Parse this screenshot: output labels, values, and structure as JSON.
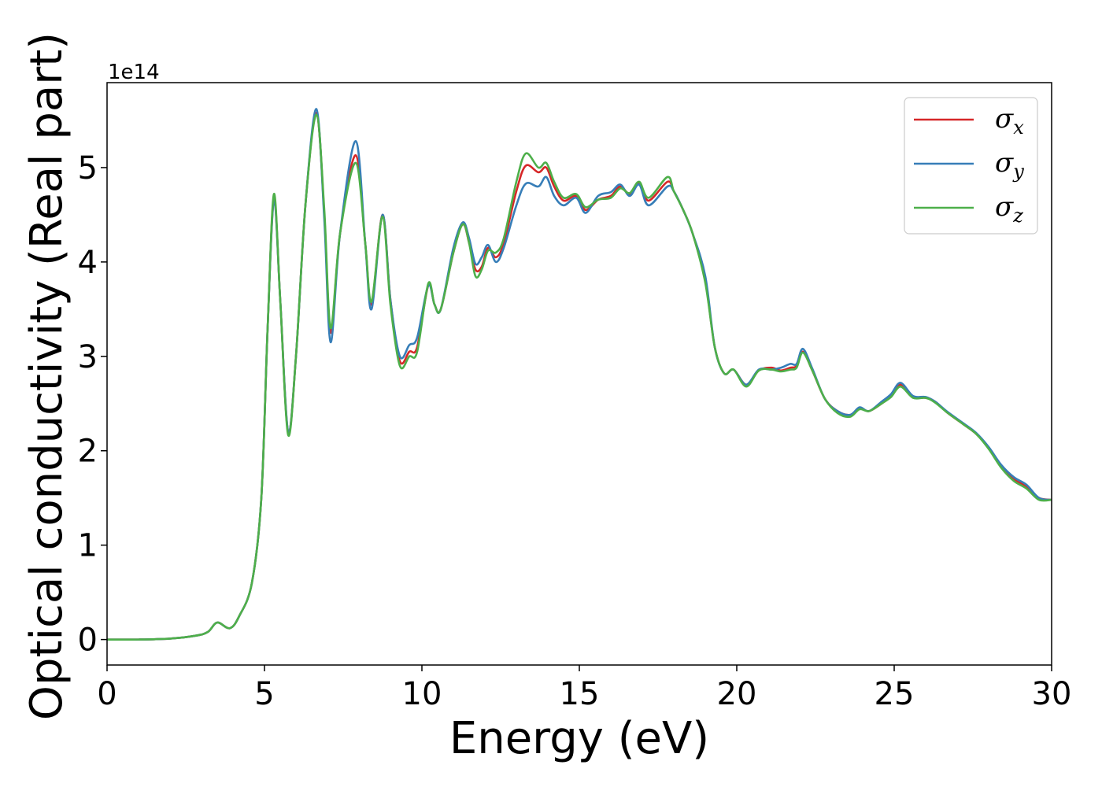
{
  "chart_data": {
    "type": "line",
    "xlabel": "Energy (eV)",
    "ylabel": "Optical conductivity (Real part)",
    "y_offset_label": "1e14",
    "xlim": [
      0,
      30
    ],
    "ylim": [
      -0.27,
      5.9
    ],
    "x_ticks": [
      0,
      5,
      10,
      15,
      20,
      25,
      30
    ],
    "y_ticks": [
      0,
      1,
      2,
      3,
      4,
      5
    ],
    "grid": false,
    "legend_position": "top-right",
    "series": [
      {
        "name": "σx",
        "symbol": "σ",
        "subscript": "x",
        "color": "#d62728",
        "points": [
          [
            0,
            0
          ],
          [
            1,
            0
          ],
          [
            2,
            0.01
          ],
          [
            2.8,
            0.04
          ],
          [
            3.2,
            0.08
          ],
          [
            3.5,
            0.18
          ],
          [
            3.9,
            0.12
          ],
          [
            4.2,
            0.25
          ],
          [
            4.6,
            0.6
          ],
          [
            4.9,
            1.5
          ],
          [
            5.1,
            3.3
          ],
          [
            5.3,
            4.68
          ],
          [
            5.5,
            3.6
          ],
          [
            5.75,
            2.2
          ],
          [
            6.0,
            3.0
          ],
          [
            6.3,
            4.6
          ],
          [
            6.65,
            5.58
          ],
          [
            6.9,
            4.5
          ],
          [
            7.1,
            3.25
          ],
          [
            7.4,
            4.3
          ],
          [
            7.9,
            5.13
          ],
          [
            8.2,
            4.2
          ],
          [
            8.4,
            3.55
          ],
          [
            8.75,
            4.5
          ],
          [
            9.0,
            3.6
          ],
          [
            9.3,
            2.95
          ],
          [
            9.6,
            3.05
          ],
          [
            9.85,
            3.1
          ],
          [
            10.2,
            3.75
          ],
          [
            10.4,
            3.55
          ],
          [
            10.6,
            3.5
          ],
          [
            11.0,
            4.1
          ],
          [
            11.3,
            4.4
          ],
          [
            11.5,
            4.2
          ],
          [
            11.7,
            3.92
          ],
          [
            11.9,
            3.95
          ],
          [
            12.1,
            4.15
          ],
          [
            12.35,
            4.05
          ],
          [
            12.6,
            4.2
          ],
          [
            13.0,
            4.75
          ],
          [
            13.3,
            5.02
          ],
          [
            13.7,
            4.95
          ],
          [
            13.95,
            5.0
          ],
          [
            14.2,
            4.8
          ],
          [
            14.5,
            4.65
          ],
          [
            14.9,
            4.7
          ],
          [
            15.2,
            4.55
          ],
          [
            15.6,
            4.66
          ],
          [
            16.0,
            4.7
          ],
          [
            16.3,
            4.8
          ],
          [
            16.6,
            4.72
          ],
          [
            16.9,
            4.83
          ],
          [
            17.2,
            4.65
          ],
          [
            17.8,
            4.85
          ],
          [
            18.0,
            4.75
          ],
          [
            18.3,
            4.55
          ],
          [
            18.6,
            4.3
          ],
          [
            19.0,
            3.8
          ],
          [
            19.3,
            3.1
          ],
          [
            19.6,
            2.82
          ],
          [
            19.9,
            2.86
          ],
          [
            20.3,
            2.7
          ],
          [
            20.7,
            2.85
          ],
          [
            21.1,
            2.88
          ],
          [
            21.4,
            2.85
          ],
          [
            21.7,
            2.88
          ],
          [
            21.9,
            2.9
          ],
          [
            22.1,
            3.05
          ],
          [
            22.4,
            2.85
          ],
          [
            22.8,
            2.55
          ],
          [
            23.2,
            2.42
          ],
          [
            23.6,
            2.38
          ],
          [
            23.9,
            2.45
          ],
          [
            24.2,
            2.42
          ],
          [
            24.6,
            2.5
          ],
          [
            24.9,
            2.58
          ],
          [
            25.2,
            2.7
          ],
          [
            25.6,
            2.57
          ],
          [
            26.0,
            2.56
          ],
          [
            26.3,
            2.52
          ],
          [
            26.7,
            2.4
          ],
          [
            27.2,
            2.28
          ],
          [
            27.6,
            2.18
          ],
          [
            28.0,
            2.03
          ],
          [
            28.4,
            1.83
          ],
          [
            28.8,
            1.7
          ],
          [
            29.2,
            1.62
          ],
          [
            29.6,
            1.5
          ],
          [
            30,
            1.48
          ]
        ]
      },
      {
        "name": "σy",
        "symbol": "σ",
        "subscript": "y",
        "color": "#377eb8",
        "points": [
          [
            0,
            0
          ],
          [
            1,
            0
          ],
          [
            2,
            0.01
          ],
          [
            2.8,
            0.04
          ],
          [
            3.2,
            0.08
          ],
          [
            3.5,
            0.18
          ],
          [
            3.9,
            0.12
          ],
          [
            4.2,
            0.25
          ],
          [
            4.6,
            0.6
          ],
          [
            4.9,
            1.5
          ],
          [
            5.1,
            3.3
          ],
          [
            5.3,
            4.66
          ],
          [
            5.5,
            3.6
          ],
          [
            5.75,
            2.2
          ],
          [
            6.0,
            3.0
          ],
          [
            6.3,
            4.6
          ],
          [
            6.65,
            5.62
          ],
          [
            6.9,
            4.45
          ],
          [
            7.1,
            3.15
          ],
          [
            7.4,
            4.3
          ],
          [
            7.9,
            5.28
          ],
          [
            8.2,
            4.2
          ],
          [
            8.4,
            3.5
          ],
          [
            8.75,
            4.5
          ],
          [
            9.0,
            3.6
          ],
          [
            9.3,
            3.0
          ],
          [
            9.6,
            3.12
          ],
          [
            9.85,
            3.2
          ],
          [
            10.2,
            3.75
          ],
          [
            10.4,
            3.55
          ],
          [
            10.6,
            3.5
          ],
          [
            11.0,
            4.15
          ],
          [
            11.3,
            4.42
          ],
          [
            11.5,
            4.25
          ],
          [
            11.7,
            3.98
          ],
          [
            11.9,
            4.05
          ],
          [
            12.1,
            4.18
          ],
          [
            12.35,
            4.0
          ],
          [
            12.6,
            4.15
          ],
          [
            13.0,
            4.6
          ],
          [
            13.3,
            4.83
          ],
          [
            13.7,
            4.8
          ],
          [
            13.95,
            4.9
          ],
          [
            14.2,
            4.7
          ],
          [
            14.5,
            4.6
          ],
          [
            14.9,
            4.68
          ],
          [
            15.2,
            4.52
          ],
          [
            15.6,
            4.7
          ],
          [
            16.0,
            4.74
          ],
          [
            16.3,
            4.82
          ],
          [
            16.6,
            4.7
          ],
          [
            16.9,
            4.82
          ],
          [
            17.2,
            4.6
          ],
          [
            17.8,
            4.8
          ],
          [
            18.0,
            4.75
          ],
          [
            18.3,
            4.55
          ],
          [
            18.6,
            4.3
          ],
          [
            19.0,
            3.85
          ],
          [
            19.3,
            3.1
          ],
          [
            19.6,
            2.82
          ],
          [
            19.9,
            2.86
          ],
          [
            20.3,
            2.7
          ],
          [
            20.7,
            2.86
          ],
          [
            21.1,
            2.86
          ],
          [
            21.4,
            2.88
          ],
          [
            21.7,
            2.92
          ],
          [
            21.9,
            2.92
          ],
          [
            22.1,
            3.08
          ],
          [
            22.4,
            2.87
          ],
          [
            22.8,
            2.55
          ],
          [
            23.2,
            2.42
          ],
          [
            23.6,
            2.38
          ],
          [
            23.9,
            2.46
          ],
          [
            24.2,
            2.42
          ],
          [
            24.6,
            2.52
          ],
          [
            24.9,
            2.6
          ],
          [
            25.2,
            2.72
          ],
          [
            25.6,
            2.58
          ],
          [
            26.0,
            2.57
          ],
          [
            26.3,
            2.52
          ],
          [
            26.7,
            2.41
          ],
          [
            27.2,
            2.29
          ],
          [
            27.6,
            2.19
          ],
          [
            28.0,
            2.04
          ],
          [
            28.4,
            1.85
          ],
          [
            28.8,
            1.72
          ],
          [
            29.2,
            1.64
          ],
          [
            29.6,
            1.5
          ],
          [
            30,
            1.48
          ]
        ]
      },
      {
        "name": "σz",
        "symbol": "σ",
        "subscript": "z",
        "color": "#4daf4a",
        "points": [
          [
            0,
            0
          ],
          [
            1,
            0
          ],
          [
            2,
            0.01
          ],
          [
            2.8,
            0.04
          ],
          [
            3.2,
            0.08
          ],
          [
            3.5,
            0.18
          ],
          [
            3.9,
            0.12
          ],
          [
            4.2,
            0.25
          ],
          [
            4.6,
            0.6
          ],
          [
            4.9,
            1.5
          ],
          [
            5.1,
            3.3
          ],
          [
            5.3,
            4.72
          ],
          [
            5.5,
            3.6
          ],
          [
            5.75,
            2.17
          ],
          [
            6.0,
            3.0
          ],
          [
            6.3,
            4.6
          ],
          [
            6.65,
            5.56
          ],
          [
            6.9,
            4.55
          ],
          [
            7.1,
            3.3
          ],
          [
            7.4,
            4.3
          ],
          [
            7.9,
            5.05
          ],
          [
            8.2,
            4.2
          ],
          [
            8.4,
            3.58
          ],
          [
            8.75,
            4.48
          ],
          [
            9.0,
            3.55
          ],
          [
            9.3,
            2.9
          ],
          [
            9.6,
            3.0
          ],
          [
            9.85,
            3.05
          ],
          [
            10.2,
            3.77
          ],
          [
            10.4,
            3.55
          ],
          [
            10.6,
            3.5
          ],
          [
            11.0,
            4.1
          ],
          [
            11.3,
            4.4
          ],
          [
            11.5,
            4.2
          ],
          [
            11.7,
            3.85
          ],
          [
            11.9,
            3.92
          ],
          [
            12.1,
            4.12
          ],
          [
            12.35,
            4.1
          ],
          [
            12.6,
            4.25
          ],
          [
            13.0,
            4.85
          ],
          [
            13.3,
            5.15
          ],
          [
            13.7,
            5.0
          ],
          [
            13.95,
            5.05
          ],
          [
            14.2,
            4.85
          ],
          [
            14.5,
            4.68
          ],
          [
            14.9,
            4.72
          ],
          [
            15.2,
            4.58
          ],
          [
            15.6,
            4.66
          ],
          [
            16.0,
            4.68
          ],
          [
            16.3,
            4.78
          ],
          [
            16.6,
            4.73
          ],
          [
            16.9,
            4.85
          ],
          [
            17.2,
            4.68
          ],
          [
            17.8,
            4.9
          ],
          [
            18.0,
            4.75
          ],
          [
            18.3,
            4.55
          ],
          [
            18.6,
            4.3
          ],
          [
            19.0,
            3.78
          ],
          [
            19.3,
            3.1
          ],
          [
            19.6,
            2.82
          ],
          [
            19.9,
            2.86
          ],
          [
            20.3,
            2.68
          ],
          [
            20.7,
            2.85
          ],
          [
            21.1,
            2.86
          ],
          [
            21.4,
            2.84
          ],
          [
            21.7,
            2.86
          ],
          [
            21.9,
            2.88
          ],
          [
            22.1,
            3.04
          ],
          [
            22.4,
            2.85
          ],
          [
            22.8,
            2.55
          ],
          [
            23.2,
            2.4
          ],
          [
            23.6,
            2.36
          ],
          [
            23.9,
            2.44
          ],
          [
            24.2,
            2.42
          ],
          [
            24.6,
            2.5
          ],
          [
            24.9,
            2.57
          ],
          [
            25.2,
            2.68
          ],
          [
            25.6,
            2.56
          ],
          [
            26.0,
            2.56
          ],
          [
            26.3,
            2.51
          ],
          [
            26.7,
            2.4
          ],
          [
            27.2,
            2.28
          ],
          [
            27.6,
            2.18
          ],
          [
            28.0,
            2.02
          ],
          [
            28.4,
            1.82
          ],
          [
            28.8,
            1.68
          ],
          [
            29.2,
            1.6
          ],
          [
            29.6,
            1.48
          ],
          [
            30,
            1.48
          ]
        ]
      }
    ]
  }
}
